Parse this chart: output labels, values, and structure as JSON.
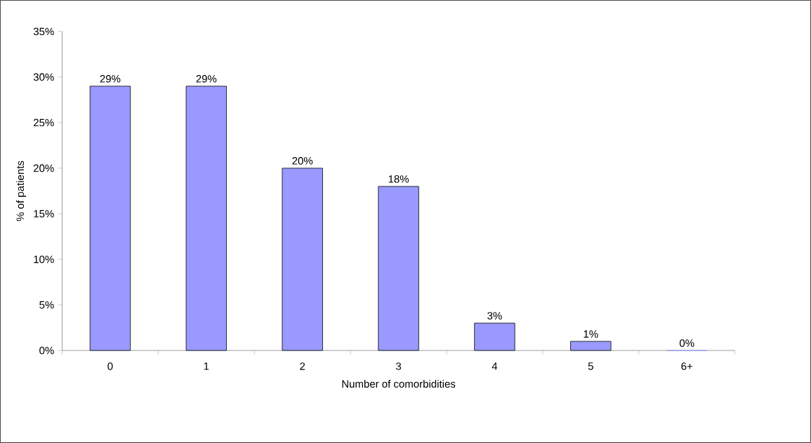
{
  "chart_data": {
    "type": "bar",
    "xlabel": "Number of comorbidities",
    "ylabel": "% of patients",
    "categories": [
      "0",
      "1",
      "2",
      "3",
      "4",
      "5",
      "6+"
    ],
    "values": [
      29,
      29,
      20,
      18,
      3,
      1,
      0
    ],
    "value_labels": [
      "29%",
      "29%",
      "20%",
      "18%",
      "3%",
      "1%",
      "0%"
    ],
    "color": "#9999ff",
    "ylim": [
      0,
      35
    ],
    "yticks": [
      {
        "value": 0,
        "label": "0%"
      },
      {
        "value": 5,
        "label": "5%"
      },
      {
        "value": 10,
        "label": "10%"
      },
      {
        "value": 15,
        "label": "15%"
      },
      {
        "value": 20,
        "label": "20%"
      },
      {
        "value": 25,
        "label": "25%"
      },
      {
        "value": 30,
        "label": "30%"
      },
      {
        "value": 35,
        "label": "35%"
      }
    ]
  }
}
